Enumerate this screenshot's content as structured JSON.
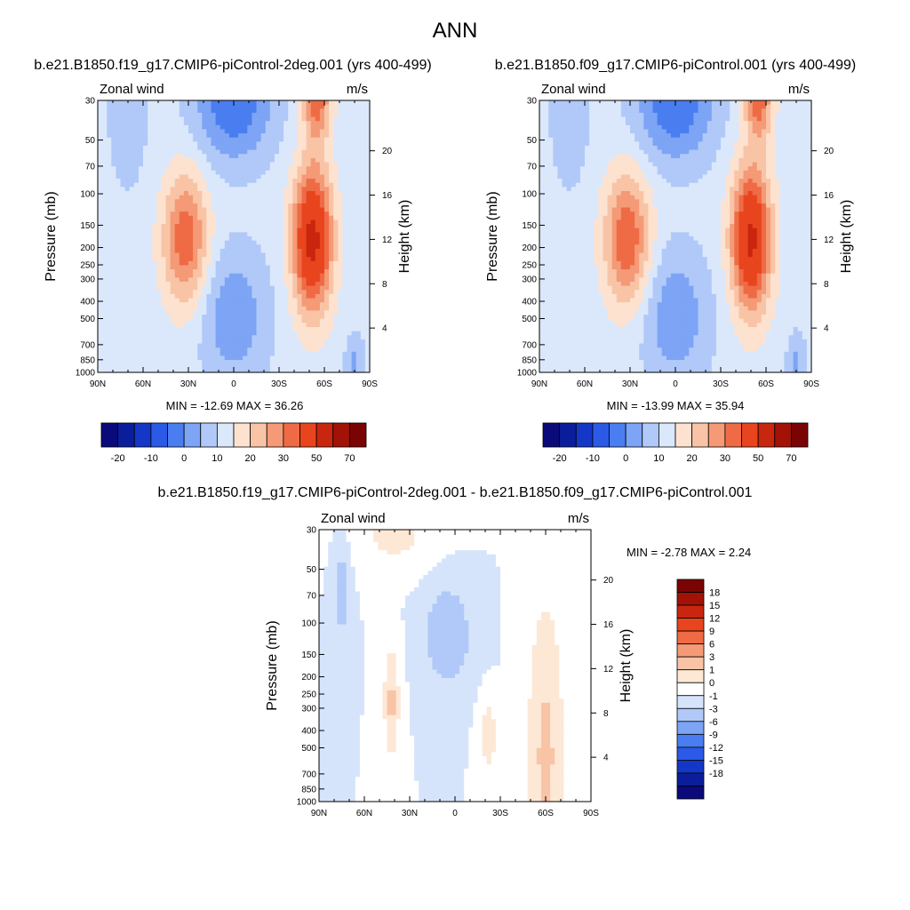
{
  "figure": {
    "title": "ANN"
  },
  "colors": {
    "main_scale": [
      "#0a0a7a",
      "#0a1e9c",
      "#1437c8",
      "#2a5ae6",
      "#4a7ef0",
      "#7da4f5",
      "#b0c9f8",
      "#dbe8fb",
      "#fde2d0",
      "#f9c4a6",
      "#f49a76",
      "#ee6b45",
      "#e8451f",
      "#c9260f",
      "#a31207",
      "#7a0403"
    ],
    "diff_scale": [
      "#0a0a7a",
      "#0a1e9c",
      "#1437c8",
      "#2a5ae6",
      "#4a7ef0",
      "#7da4f5",
      "#b0c9f8",
      "#d6e4fb",
      "#ffffff",
      "#fde8d6",
      "#f9c4a6",
      "#f49a76",
      "#ee6b45",
      "#e8451f",
      "#c9260f",
      "#a31207",
      "#7a0403"
    ]
  },
  "chart_data": [
    {
      "type": "heatmap",
      "title": "b.e21.B1850.f19_g17.CMIP6-piControl-2deg.001 (yrs 400-499)",
      "left_label": "Zonal wind",
      "right_label": "m/s",
      "ylabel": "Pressure (mb)",
      "y2label": "Height (km)",
      "xticks": [
        "90N",
        "60N",
        "30N",
        "0",
        "30S",
        "60S",
        "90S"
      ],
      "yticks": [
        "30",
        "50",
        "70",
        "100",
        "150",
        "200",
        "250",
        "300",
        "400",
        "500",
        "700",
        "850",
        "1000"
      ],
      "y2ticks": [
        "20",
        "16",
        "12",
        "8",
        "4"
      ],
      "ylim": [
        1000,
        30
      ],
      "xlim": [
        90,
        -90
      ],
      "stats": "MIN = -12.69  MAX =  36.26",
      "min": -12.69,
      "max": 36.26,
      "colorbar_labels": [
        "-20",
        "-10",
        "0",
        "10",
        "20",
        "30",
        "50",
        "70"
      ],
      "jets": {
        "nh_lat": 32,
        "nh_max": 22,
        "sh_lat": -52,
        "sh_max": 36
      }
    },
    {
      "type": "heatmap",
      "title": "b.e21.B1850.f09_g17.CMIP6-piControl.001 (yrs 400-499)",
      "left_label": "Zonal wind",
      "right_label": "m/s",
      "ylabel": "Pressure (mb)",
      "y2label": "Height (km)",
      "xticks": [
        "90N",
        "60N",
        "30N",
        "0",
        "30S",
        "60S",
        "90S"
      ],
      "yticks": [
        "30",
        "50",
        "70",
        "100",
        "150",
        "200",
        "250",
        "300",
        "400",
        "500",
        "700",
        "850",
        "1000"
      ],
      "y2ticks": [
        "20",
        "16",
        "12",
        "8",
        "4"
      ],
      "ylim": [
        1000,
        30
      ],
      "xlim": [
        90,
        -90
      ],
      "stats": "MIN = -13.99  MAX =  35.94",
      "min": -13.99,
      "max": 35.94,
      "colorbar_labels": [
        "-20",
        "-10",
        "0",
        "10",
        "20",
        "30",
        "50",
        "70"
      ],
      "jets": {
        "nh_lat": 32,
        "nh_max": 23,
        "sh_lat": -50,
        "sh_max": 35
      }
    },
    {
      "type": "heatmap",
      "title": "b.e21.B1850.f19_g17.CMIP6-piControl-2deg.001 - b.e21.B1850.f09_g17.CMIP6-piControl.001",
      "left_label": "Zonal wind",
      "right_label": "m/s",
      "ylabel": "Pressure (mb)",
      "y2label": "Height (km)",
      "xticks": [
        "90N",
        "60N",
        "30N",
        "0",
        "30S",
        "60S",
        "90S"
      ],
      "yticks": [
        "30",
        "50",
        "70",
        "100",
        "150",
        "200",
        "250",
        "300",
        "400",
        "500",
        "700",
        "850",
        "1000"
      ],
      "y2ticks": [
        "20",
        "16",
        "12",
        "8",
        "4"
      ],
      "ylim": [
        1000,
        30
      ],
      "xlim": [
        90,
        -90
      ],
      "stats": "MIN =  -2.78  MAX =   2.24",
      "min": -2.78,
      "max": 2.24,
      "colorbar_labels": [
        "18",
        "15",
        "12",
        "9",
        "6",
        "3",
        "1",
        "0",
        "-1",
        "-3",
        "-6",
        "-9",
        "-12",
        "-15",
        "-18"
      ],
      "colorbar_orientation": "vertical"
    }
  ]
}
